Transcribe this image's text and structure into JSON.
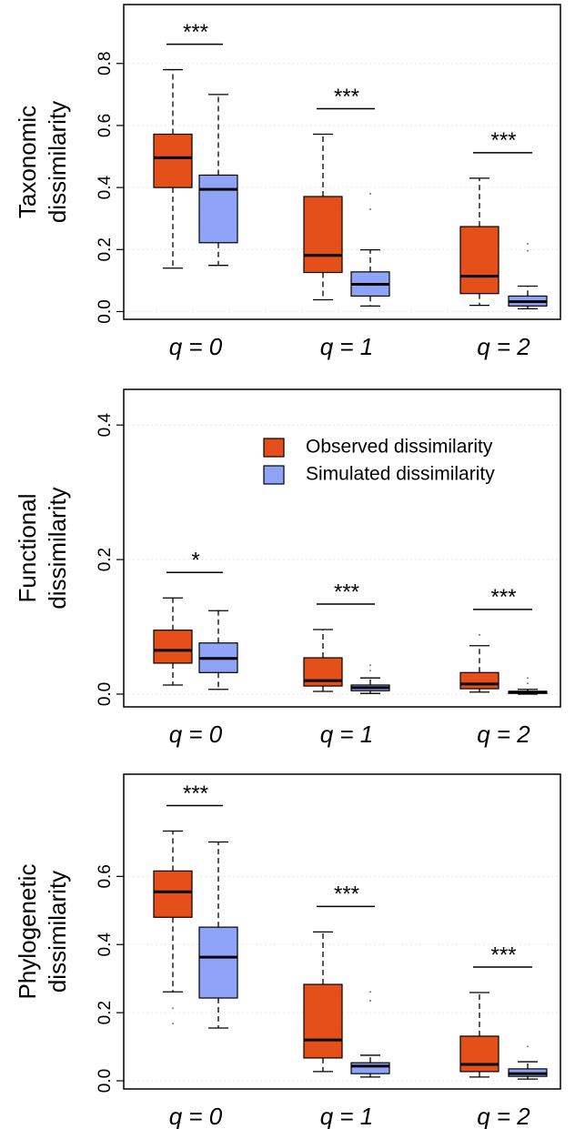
{
  "chart_data": [
    {
      "type": "box",
      "ylabel": [
        "Taxonomic",
        "dissimilarity"
      ],
      "categories": [
        "q = 0",
        "q = 1",
        "q = 2"
      ],
      "ylim": [
        -0.025,
        0.99
      ],
      "yticks": [
        {
          "value": 0,
          "label": "0.0"
        },
        0.2,
        0.4,
        0.6,
        0.8
      ],
      "grid": true,
      "significance": [
        "***",
        "***",
        "***"
      ],
      "series": [
        {
          "color": "#e5501a",
          "values": [
            {
              "whislo": 0.14,
              "q1": 0.4,
              "med": 0.496,
              "q3": 0.572,
              "whishi": 0.78,
              "fliers": []
            },
            {
              "whislo": 0.038,
              "q1": 0.126,
              "med": 0.181,
              "q3": 0.371,
              "whishi": 0.572,
              "fliers": []
            },
            {
              "whislo": 0.02,
              "q1": 0.058,
              "med": 0.114,
              "q3": 0.274,
              "whishi": 0.43,
              "fliers": []
            }
          ]
        },
        {
          "color": "#8fa3f7",
          "values": [
            {
              "whislo": 0.149,
              "q1": 0.222,
              "med": 0.394,
              "q3": 0.44,
              "whishi": 0.7,
              "fliers": []
            },
            {
              "whislo": 0.018,
              "q1": 0.05,
              "med": 0.088,
              "q3": 0.128,
              "whishi": 0.199,
              "fliers": [
                0.38,
                0.33
              ]
            },
            {
              "whislo": 0.009,
              "q1": 0.018,
              "med": 0.032,
              "q3": 0.05,
              "whishi": 0.082,
              "fliers": [
                0.219,
                0.196
              ]
            }
          ]
        }
      ]
    },
    {
      "type": "box",
      "ylabel": [
        "Functional",
        "dissimilarity"
      ],
      "categories": [
        "q = 0",
        "q = 1",
        "q = 2"
      ],
      "ylim": [
        -0.019,
        0.453
      ],
      "yticks": [
        {
          "value": 0,
          "label": "0.0"
        },
        0.2,
        0.4
      ],
      "grid": true,
      "legend": "upper right",
      "significance": [
        "*",
        "***",
        "***"
      ],
      "series": [
        {
          "name": "Observed dissimilarity",
          "color": "#e5501a",
          "values": [
            {
              "whislo": 0.0135,
              "q1": 0.046,
              "med": 0.065,
              "q3": 0.095,
              "whishi": 0.143,
              "fliers": []
            },
            {
              "whislo": 0.004,
              "q1": 0.012,
              "med": 0.02,
              "q3": 0.054,
              "whishi": 0.096,
              "fliers": []
            },
            {
              "whislo": 0.003,
              "q1": 0.008,
              "med": 0.015,
              "q3": 0.032,
              "whishi": 0.072,
              "fliers": [
                0.088
              ]
            }
          ]
        },
        {
          "name": "Simulated dissimilarity",
          "color": "#8fa3f7",
          "values": [
            {
              "whislo": 0.007,
              "q1": 0.032,
              "med": 0.053,
              "q3": 0.076,
              "whishi": 0.124,
              "fliers": []
            },
            {
              "whislo": 0.001,
              "q1": 0.005,
              "med": 0.0095,
              "q3": 0.0135,
              "whishi": 0.024,
              "fliers": [
                0.043,
                0.035
              ]
            },
            {
              "whislo": 0,
              "q1": 0.001,
              "med": 0.003,
              "q3": 0.004,
              "whishi": 0.007,
              "fliers": [
                0.024,
                0.016
              ]
            }
          ]
        }
      ]
    },
    {
      "type": "box",
      "ylabel": [
        "Phylogenetic",
        "dissimilarity"
      ],
      "categories": [
        "q = 0",
        "q = 1",
        "q = 2"
      ],
      "ylim": [
        -0.024,
        0.9
      ],
      "yticks": [
        {
          "value": 0,
          "label": "0.0"
        },
        0.2,
        0.4,
        0.6
      ],
      "grid": true,
      "significance": [
        "***",
        "***",
        "***"
      ],
      "series": [
        {
          "color": "#e5501a",
          "values": [
            {
              "whislo": 0.261,
              "q1": 0.48,
              "med": 0.555,
              "q3": 0.616,
              "whishi": 0.733,
              "fliers": [
                0.213,
                0.168
              ]
            },
            {
              "whislo": 0.027,
              "q1": 0.067,
              "med": 0.12,
              "q3": 0.283,
              "whishi": 0.437,
              "fliers": []
            },
            {
              "whislo": 0.011,
              "q1": 0.027,
              "med": 0.048,
              "q3": 0.131,
              "whishi": 0.259,
              "fliers": []
            }
          ]
        },
        {
          "color": "#8fa3f7",
          "values": [
            {
              "whislo": 0.155,
              "q1": 0.243,
              "med": 0.363,
              "q3": 0.451,
              "whishi": 0.701,
              "fliers": []
            },
            {
              "whislo": 0.011,
              "q1": 0.021,
              "med": 0.043,
              "q3": 0.053,
              "whishi": 0.075,
              "fliers": [
                0.261,
                0.235
              ]
            },
            {
              "whislo": 0.005,
              "q1": 0.013,
              "med": 0.021,
              "q3": 0.035,
              "whishi": 0.056,
              "fliers": [
                0.101
              ]
            }
          ]
        }
      ]
    }
  ]
}
